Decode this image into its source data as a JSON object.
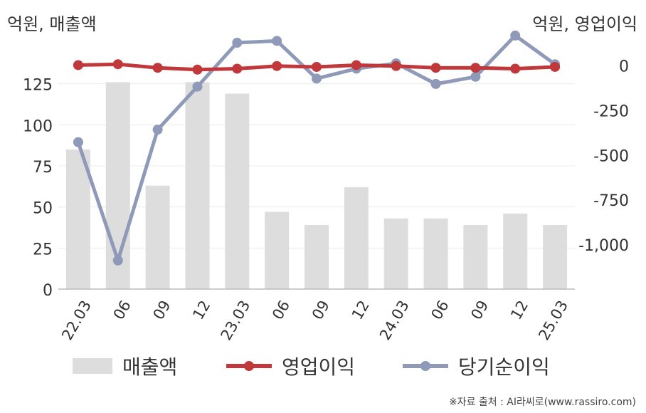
{
  "chart_data": {
    "type": "bar+line",
    "categories": [
      "22.03",
      "06",
      "09",
      "12",
      "23.03",
      "06",
      "09",
      "12",
      "24.03",
      "06",
      "09",
      "12",
      "25.03"
    ],
    "left_axis": {
      "unit_label": "억원, 매출액",
      "ticks": [
        "125",
        "100",
        "75",
        "50",
        "25",
        "0"
      ],
      "tick_values": [
        125,
        100,
        75,
        50,
        25,
        0
      ],
      "range": [
        0,
        150
      ]
    },
    "right_axis": {
      "unit_label": "억원, 영업이익",
      "ticks": [
        "0",
        "-250",
        "-500",
        "-750",
        "-1,000"
      ],
      "tick_values": [
        0,
        -250,
        -500,
        -750,
        -1000
      ],
      "range": [
        -1250,
        125
      ]
    },
    "series": [
      {
        "name": "매출액",
        "type": "bar",
        "axis": "left",
        "color": "#dddddd",
        "values": [
          85,
          126,
          63,
          126,
          119,
          47,
          39,
          62,
          43,
          43,
          39,
          46,
          39
        ]
      },
      {
        "name": "영업이익",
        "type": "line",
        "axis": "right",
        "color": "#c0383a",
        "values": [
          0,
          5,
          -15,
          -25,
          -20,
          -5,
          -10,
          0,
          -5,
          -15,
          -15,
          -20,
          -10
        ]
      },
      {
        "name": "당기순이익",
        "type": "line",
        "axis": "right",
        "color": "#8e9ab8",
        "values": [
          -430,
          -1090,
          -360,
          -120,
          125,
          135,
          -75,
          -20,
          10,
          -105,
          -65,
          165,
          5
        ]
      }
    ],
    "grid": true,
    "legend_position": "bottom"
  },
  "source": "※자료 출처 : AI라씨로(www.rassiro.com)"
}
